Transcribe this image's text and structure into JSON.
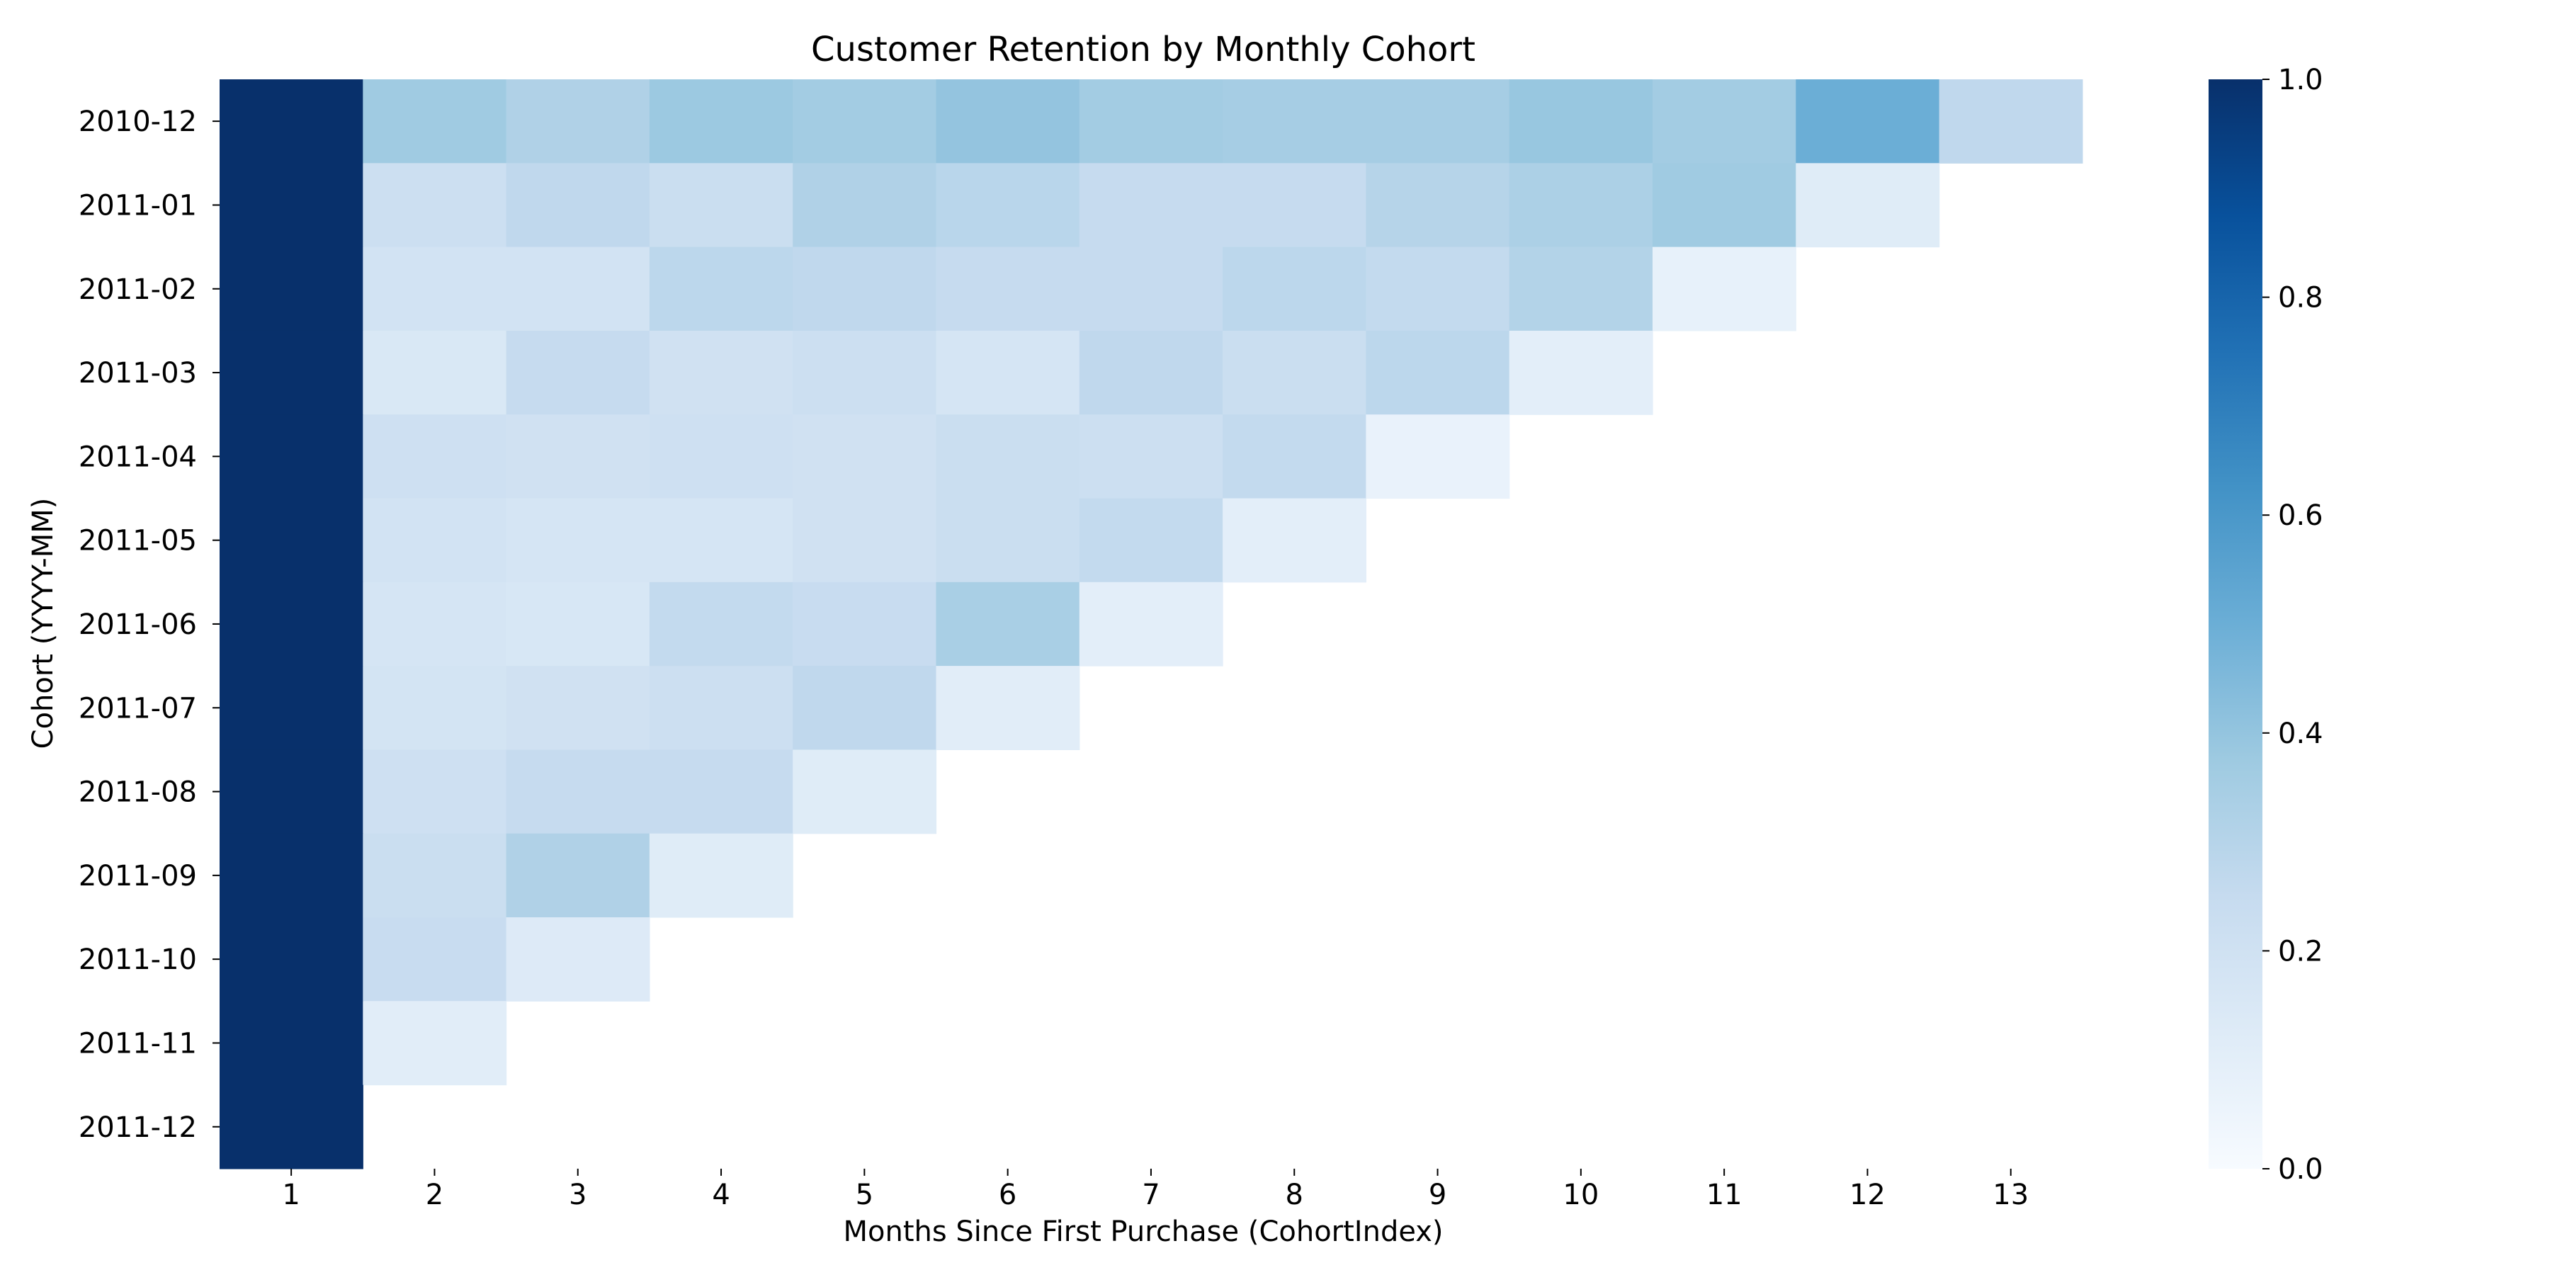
{
  "chart_data": {
    "type": "heatmap",
    "title": "Customer Retention by Monthly Cohort",
    "xlabel": "Months Since First Purchase (CohortIndex)",
    "ylabel": "Cohort (YYYY-MM)",
    "x_categories": [
      "1",
      "2",
      "3",
      "4",
      "5",
      "6",
      "7",
      "8",
      "9",
      "10",
      "11",
      "12",
      "13"
    ],
    "y_categories": [
      "2010-12",
      "2011-01",
      "2011-02",
      "2011-03",
      "2011-04",
      "2011-05",
      "2011-06",
      "2011-07",
      "2011-08",
      "2011-09",
      "2011-10",
      "2011-11",
      "2011-12"
    ],
    "values": [
      [
        1.0,
        0.37,
        0.32,
        0.38,
        0.36,
        0.4,
        0.36,
        0.35,
        0.35,
        0.39,
        0.36,
        0.5,
        0.27
      ],
      [
        1.0,
        0.22,
        0.27,
        0.23,
        0.32,
        0.29,
        0.25,
        0.25,
        0.3,
        0.33,
        0.37,
        0.12,
        null
      ],
      [
        1.0,
        0.19,
        0.19,
        0.28,
        0.27,
        0.25,
        0.25,
        0.28,
        0.26,
        0.31,
        0.08,
        null,
        null
      ],
      [
        1.0,
        0.15,
        0.25,
        0.2,
        0.22,
        0.17,
        0.27,
        0.23,
        0.28,
        0.1,
        null,
        null,
        null
      ],
      [
        1.0,
        0.21,
        0.2,
        0.21,
        0.2,
        0.23,
        0.22,
        0.26,
        0.07,
        null,
        null,
        null,
        null
      ],
      [
        1.0,
        0.19,
        0.17,
        0.17,
        0.2,
        0.23,
        0.26,
        0.1,
        null,
        null,
        null,
        null,
        null
      ],
      [
        1.0,
        0.17,
        0.16,
        0.26,
        0.24,
        0.34,
        0.1,
        null,
        null,
        null,
        null,
        null,
        null
      ],
      [
        1.0,
        0.18,
        0.2,
        0.22,
        0.27,
        0.11,
        null,
        null,
        null,
        null,
        null,
        null,
        null
      ],
      [
        1.0,
        0.21,
        0.25,
        0.25,
        0.12,
        null,
        null,
        null,
        null,
        null,
        null,
        null,
        null
      ],
      [
        1.0,
        0.23,
        0.32,
        0.12,
        null,
        null,
        null,
        null,
        null,
        null,
        null,
        null,
        null
      ],
      [
        1.0,
        0.24,
        0.13,
        null,
        null,
        null,
        null,
        null,
        null,
        null,
        null,
        null,
        null
      ],
      [
        1.0,
        0.11,
        null,
        null,
        null,
        null,
        null,
        null,
        null,
        null,
        null,
        null,
        null
      ],
      [
        1.0,
        null,
        null,
        null,
        null,
        null,
        null,
        null,
        null,
        null,
        null,
        null,
        null
      ]
    ],
    "colorbar": {
      "colormap": "Blues",
      "min": 0.0,
      "max": 1.0,
      "ticks": [
        "0.0",
        "0.2",
        "0.4",
        "0.6",
        "0.8",
        "1.0"
      ]
    }
  }
}
